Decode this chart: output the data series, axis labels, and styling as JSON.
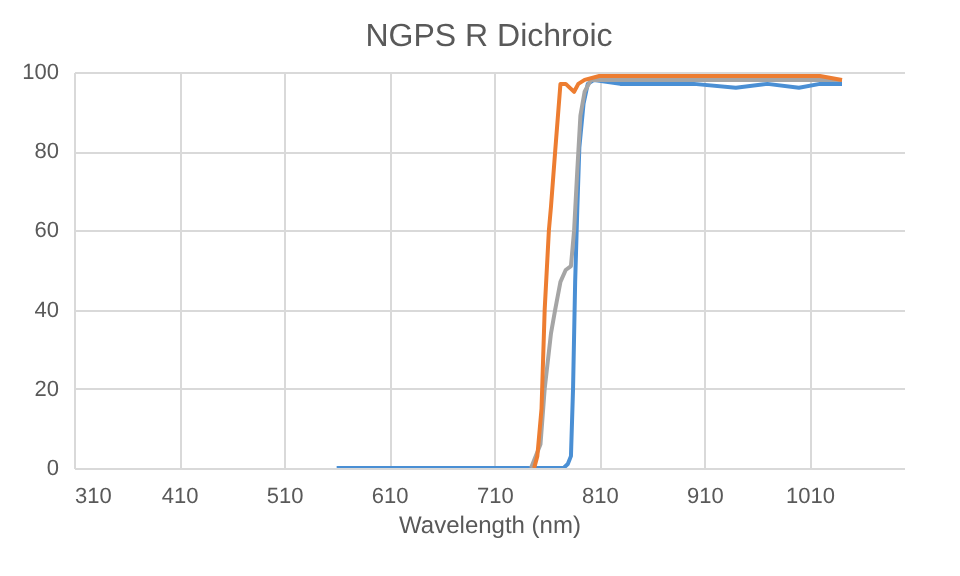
{
  "chart_data": {
    "type": "line",
    "title": "NGPS R Dichroic",
    "xlabel": "Wavelength (nm)",
    "xlim": [
      310,
      1100
    ],
    "xticks": [
      310,
      410,
      510,
      610,
      710,
      810,
      910,
      1010
    ],
    "ylim": [
      0,
      100
    ],
    "yticks": [
      0,
      20,
      40,
      60,
      80,
      100
    ],
    "grid": true,
    "legend": false,
    "marker": "none",
    "line_style": "solid",
    "series": [
      {
        "color": "#4a8fd4",
        "x": [
          560,
          600,
          650,
          700,
          776,
          780,
          783,
          785,
          787,
          789,
          791,
          795,
          799,
          805,
          830,
          860,
          900,
          940,
          970,
          1000,
          1020,
          1041
        ],
        "values": [
          0,
          0,
          0,
          0,
          0,
          1,
          3,
          20,
          47,
          65,
          81,
          92,
          97,
          98,
          97,
          97,
          97,
          96,
          97,
          96,
          97,
          97
        ]
      },
      {
        "color": "#a5a5a5",
        "x": [
          745,
          754,
          758,
          764,
          768,
          773,
          778,
          783,
          786,
          789,
          792,
          796,
          802,
          820,
          860,
          900,
          940,
          980,
          1020,
          1041
        ],
        "values": [
          0,
          6,
          20,
          34,
          40,
          47,
          50,
          51,
          60,
          75,
          89,
          95,
          98,
          98,
          98,
          98,
          98,
          98,
          98,
          98
        ]
      },
      {
        "color": "#ed7d31",
        "x": [
          748,
          751,
          755,
          758,
          762,
          764,
          768,
          773,
          778,
          782,
          786,
          790,
          796,
          810,
          840,
          880,
          920,
          960,
          1000,
          1020,
          1041
        ],
        "values": [
          0,
          3,
          15,
          40,
          60,
          66,
          80,
          97,
          97,
          96,
          95,
          97,
          98,
          99,
          99,
          99,
          99,
          99,
          99,
          99,
          98
        ]
      }
    ]
  }
}
